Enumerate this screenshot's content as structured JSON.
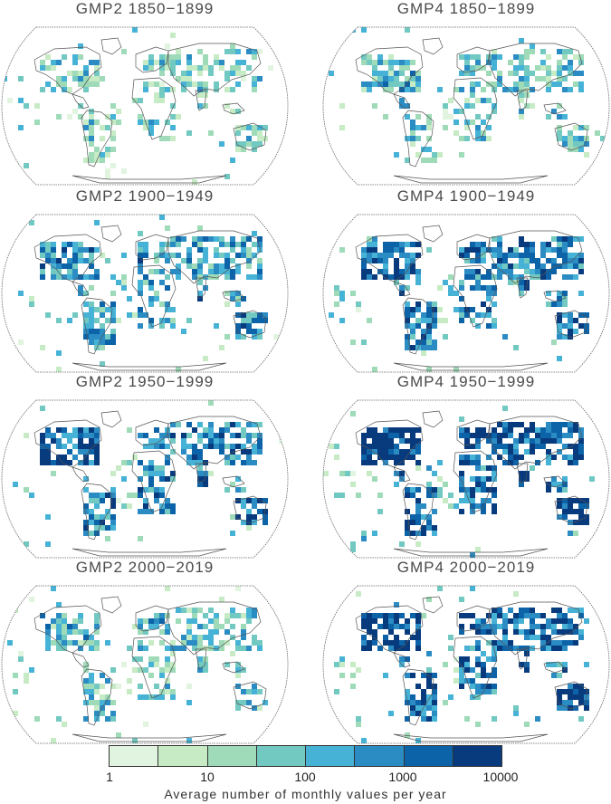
{
  "panels": [
    {
      "title": "GMP2  1850−1899",
      "level": 0.15
    },
    {
      "title": "GMP4  1850−1899",
      "level": 0.22
    },
    {
      "title": "GMP2  1900−1949",
      "level": 0.4
    },
    {
      "title": "GMP4  1900−1949",
      "level": 0.55
    },
    {
      "title": "GMP2  1950−1999",
      "level": 0.55
    },
    {
      "title": "GMP4  1950−1999",
      "level": 0.75
    },
    {
      "title": "GMP2  2000−2019",
      "level": 0.25
    },
    {
      "title": "GMP4  2000−2019",
      "level": 0.7
    }
  ],
  "legend": {
    "title": "Average number of monthly values per year",
    "ticks": [
      "1",
      "10",
      "100",
      "1000",
      "10000"
    ],
    "colors": [
      "#e0f4e0",
      "#c6ebc5",
      "#9fdbb8",
      "#72c9c1",
      "#46b3d6",
      "#2b8cc4",
      "#0c63a8",
      "#083b7e"
    ]
  }
}
